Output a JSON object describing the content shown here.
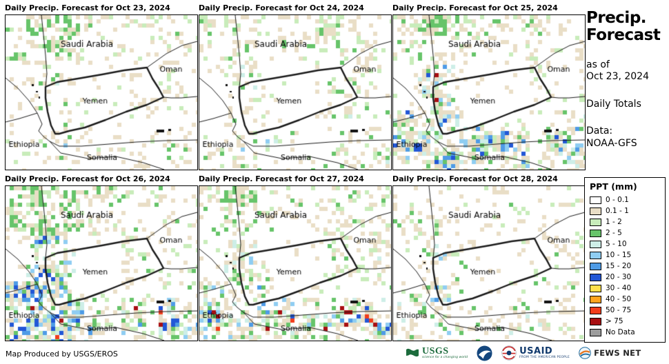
{
  "panels": [
    {
      "title": "Daily Precip. Forecast for Oct 23, 2024",
      "rain": {
        "seed": 7,
        "west": 0.3,
        "south": 0.22,
        "ethiopia": 0.18,
        "north": 0.18,
        "east": 0.18,
        "nw": 0.45,
        "hot": 0,
        "hotzone": ""
      }
    },
    {
      "title": "Daily Precip. Forecast for Oct 24, 2024",
      "rain": {
        "seed": 13,
        "west": 0.32,
        "south": 0.32,
        "ethiopia": 0.15,
        "north": 0.4,
        "east": 0.22,
        "nw": 0.2,
        "hot": 0.02,
        "hotzone": "south"
      }
    },
    {
      "title": "Daily Precip. Forecast for Oct 25, 2024",
      "rain": {
        "seed": 21,
        "west": 0.8,
        "south": 0.7,
        "ethiopia": 0.45,
        "north": 0.35,
        "east": 0.25,
        "nw": 0.3,
        "hot": 0.22,
        "hotzone": "west"
      }
    },
    {
      "title": "Daily Precip. Forecast for Oct 26, 2024",
      "rain": {
        "seed": 33,
        "west": 0.7,
        "south": 0.55,
        "ethiopia": 0.6,
        "north": 0.3,
        "east": 0.2,
        "nw": 0.5,
        "hot": 0.12,
        "hotzone": "south"
      }
    },
    {
      "title": "Daily Precip. Forecast for Oct 27, 2024",
      "rain": {
        "seed": 41,
        "west": 0.6,
        "south": 0.68,
        "ethiopia": 0.55,
        "north": 0.18,
        "east": 0.25,
        "nw": 0.25,
        "hot": 0.2,
        "hotzone": "south"
      }
    },
    {
      "title": "Daily Precip. Forecast for Oct 28, 2024",
      "rain": {
        "seed": 55,
        "west": 0.4,
        "south": 0.3,
        "ethiopia": 0.32,
        "north": 0.18,
        "east": 0.2,
        "nw": 0.2,
        "hot": 0.02,
        "hotzone": "south"
      }
    }
  ],
  "countries": {
    "saudi_arabia": "Saudi Arabia",
    "oman": "Oman",
    "yemen": "Yemen",
    "ethiopia": "Ethiopia",
    "somalia": "Somalia"
  },
  "sidebar": {
    "title_line1": "Precip.",
    "title_line2": "Forecast",
    "as_of_line1": "as of",
    "as_of_line2": "Oct 23, 2024",
    "daily_totals": "Daily Totals",
    "data_line1": "Data:",
    "data_line2": "NOAA-GFS"
  },
  "legend": {
    "title": "PPT (mm)",
    "entries": [
      {
        "label": "0 - 0.1",
        "color": "#ffffff"
      },
      {
        "label": "0.1 - 1",
        "color": "#e9dec6"
      },
      {
        "label": "1 - 2",
        "color": "#c8ecba"
      },
      {
        "label": "2 - 5",
        "color": "#67c46a"
      },
      {
        "label": "5 - 10",
        "color": "#cdeee7"
      },
      {
        "label": "10 - 15",
        "color": "#8fcdf2"
      },
      {
        "label": "15 - 20",
        "color": "#4e9be6"
      },
      {
        "label": "20 - 30",
        "color": "#2257d6"
      },
      {
        "label": "30 - 40",
        "color": "#ffe04d"
      },
      {
        "label": "40 - 50",
        "color": "#ffa41e"
      },
      {
        "label": "50 - 75",
        "color": "#f23d1c"
      },
      {
        "label": "> 75",
        "color": "#a80f12"
      },
      {
        "label": "No Data",
        "color": "#9c9c9c"
      }
    ]
  },
  "footer": {
    "credit": "Map Produced by USGS/EROS",
    "logos": {
      "usgs": {
        "name": "USGS",
        "tagline": "science for a changing world"
      },
      "usaid": {
        "name": "USAID",
        "tagline": "FROM THE AMERICAN PEOPLE"
      },
      "fewsnet": {
        "name": "FEWS NET"
      }
    }
  }
}
